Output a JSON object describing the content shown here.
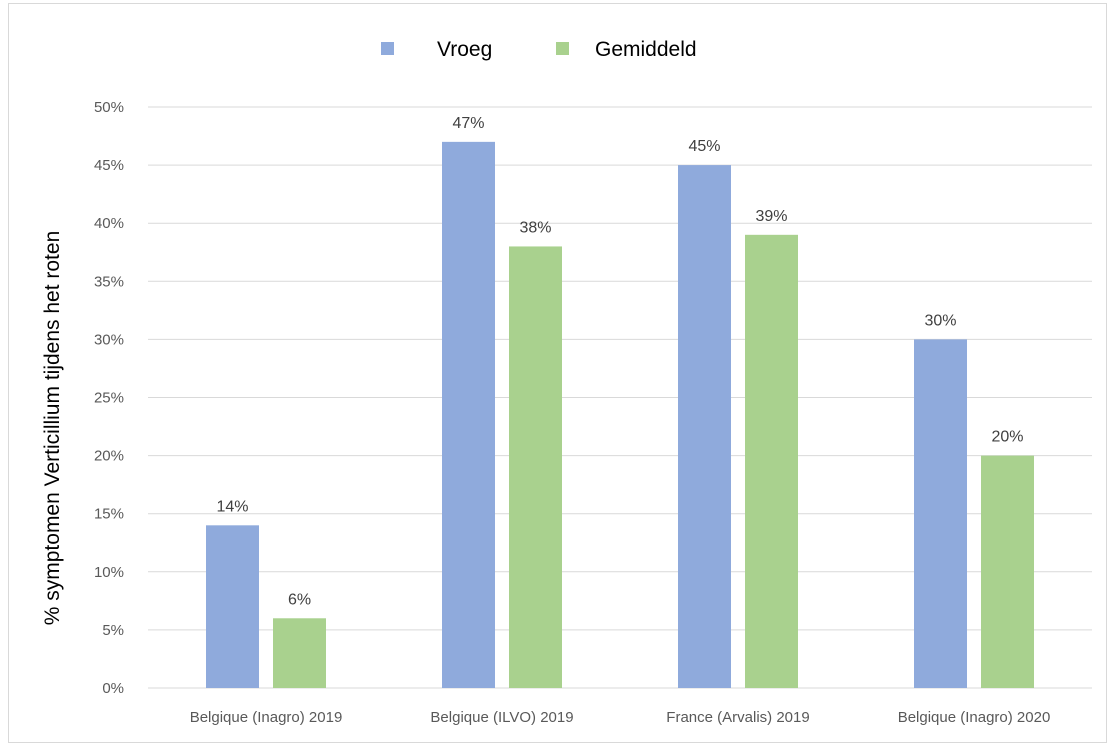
{
  "chart_data": {
    "type": "bar",
    "categories": [
      "Belgique (Inagro) 2019",
      "Belgique (ILVO) 2019",
      "France (Arvalis) 2019",
      "Belgique (Inagro) 2020"
    ],
    "series": [
      {
        "name": "Vroeg",
        "values": [
          14,
          47,
          45,
          30
        ],
        "labels": [
          "14%",
          "47%",
          "45%",
          "30%"
        ],
        "color": "#8faadc"
      },
      {
        "name": "Gemiddeld",
        "values": [
          6,
          38,
          39,
          20
        ],
        "labels": [
          "6%",
          "38%",
          "39%",
          "20%"
        ],
        "color": "#a9d18e"
      }
    ],
    "ylabel": "% symptomen Verticillium tijdens het roten",
    "xlabel": "",
    "ylim": [
      0,
      50
    ],
    "yticks": [
      "0%",
      "5%",
      "10%",
      "15%",
      "20%",
      "25%",
      "30%",
      "35%",
      "40%",
      "45%",
      "50%"
    ],
    "grid": true,
    "legend_position": "top-center",
    "gridline_color": "#d9d9d9"
  }
}
